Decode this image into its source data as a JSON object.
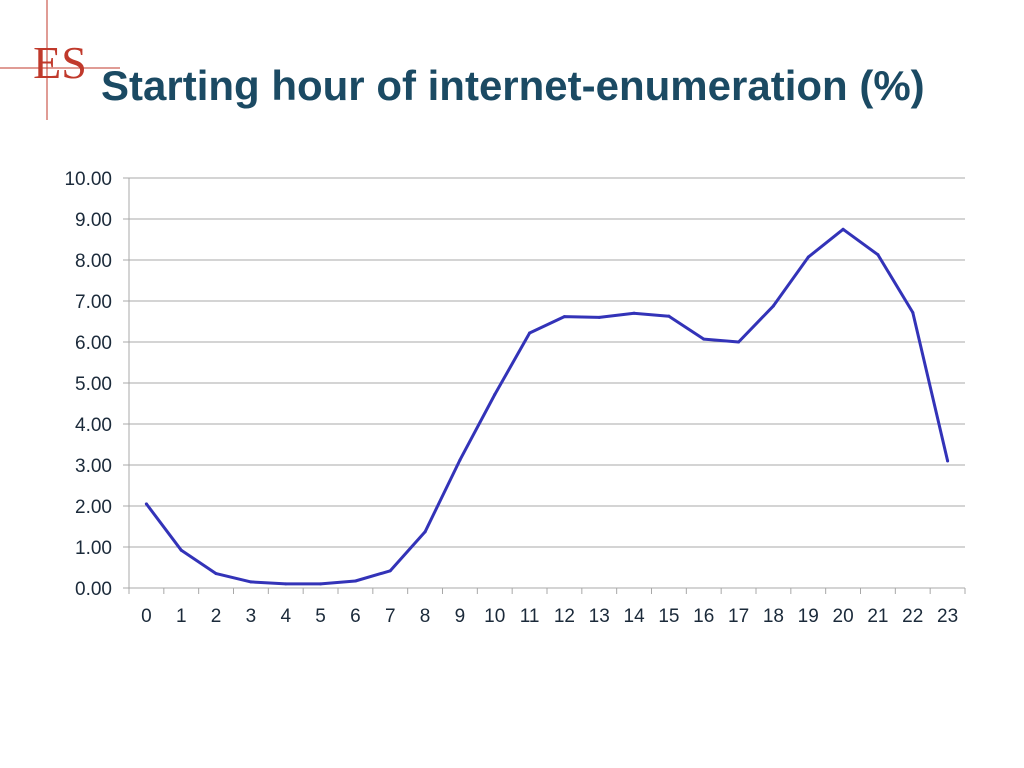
{
  "logo": {
    "text": "ES",
    "color": "#c0392b"
  },
  "title": "Starting hour of internet-enumeration (%)",
  "chart_data": {
    "type": "line",
    "title": "Starting hour of internet-enumeration (%)",
    "xlabel": "",
    "ylabel": "",
    "x": [
      0,
      1,
      2,
      3,
      4,
      5,
      6,
      7,
      8,
      9,
      10,
      11,
      12,
      13,
      14,
      15,
      16,
      17,
      18,
      19,
      20,
      21,
      22,
      23
    ],
    "x_tick_labels": [
      "0",
      "1",
      "2",
      "3",
      "4",
      "5",
      "6",
      "7",
      "8",
      "9",
      "10",
      "11",
      "12",
      "13",
      "14",
      "15",
      "16",
      "17",
      "18",
      "19",
      "20",
      "21",
      "22",
      "23"
    ],
    "y_tick_labels": [
      "0.00",
      "1.00",
      "2.00",
      "3.00",
      "4.00",
      "5.00",
      "6.00",
      "7.00",
      "8.00",
      "9.00",
      "10.00"
    ],
    "ylim": [
      0,
      10
    ],
    "grid": true,
    "legend": "none",
    "series": [
      {
        "values": [
          2.05,
          0.92,
          0.35,
          0.15,
          0.1,
          0.1,
          0.17,
          0.42,
          1.37,
          3.12,
          4.72,
          6.22,
          6.62,
          6.6,
          6.7,
          6.63,
          6.07,
          6.0,
          6.88,
          8.07,
          8.75,
          8.13,
          6.72,
          3.1
        ],
        "color": "#3333b8"
      }
    ]
  }
}
